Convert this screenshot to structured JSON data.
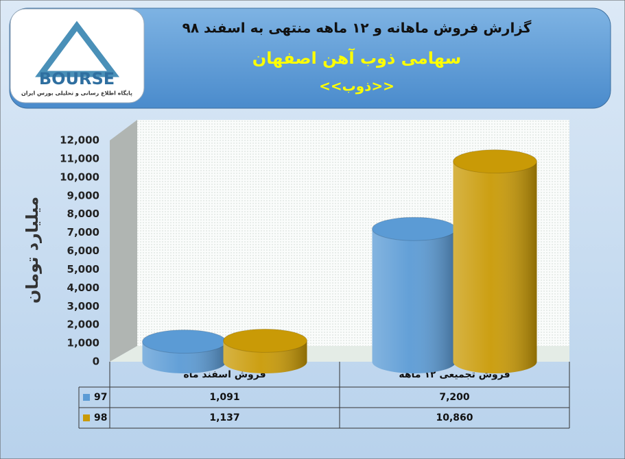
{
  "logo": {
    "text": "BOURSE",
    "caption": "پایگاه اطلاع رسانی و تحلیلی بورس ایران"
  },
  "chart_data": {
    "type": "bar",
    "title": "گزارش فروش ماهانه و ۱۲ ماهه منتهی به اسفند  ۹۸",
    "subtitle": "سهامی ذوب آهن اصفهان",
    "subtitle2": "<<ذوب>>",
    "y_label": "میلیارد تومان",
    "categories": [
      "فروش اسفند  ماه",
      "فروش تجمیعی ۱۲ ماهه"
    ],
    "series": [
      {
        "name": "97",
        "color": "#5b9bd5",
        "values": [
          1091,
          7200
        ],
        "value_labels": [
          "1,091",
          "7,200"
        ]
      },
      {
        "name": "98",
        "color": "#c99a06",
        "values": [
          1137,
          10860
        ],
        "value_labels": [
          "1,137",
          "10,860"
        ]
      }
    ],
    "ylim": [
      0,
      12000
    ],
    "yticks": [
      0,
      {
        "value": 1000,
        "label": "1,000"
      },
      {
        "value": 2000,
        "label": "2,000"
      },
      {
        "value": 3000,
        "label": "3,000"
      },
      {
        "value": 4000,
        "label": "4,000"
      },
      {
        "value": 5000,
        "label": "5,000"
      },
      {
        "value": 6000,
        "label": "6,000"
      },
      {
        "value": 7000,
        "label": "7,000"
      },
      {
        "value": 8000,
        "label": "8,000"
      },
      {
        "value": 9000,
        "label": "9,000"
      },
      {
        "value": 10000,
        "label": "10,000"
      },
      {
        "value": 11000,
        "label": "11,000"
      },
      {
        "value": 12000,
        "label": "12,000"
      }
    ],
    "grid": false
  }
}
